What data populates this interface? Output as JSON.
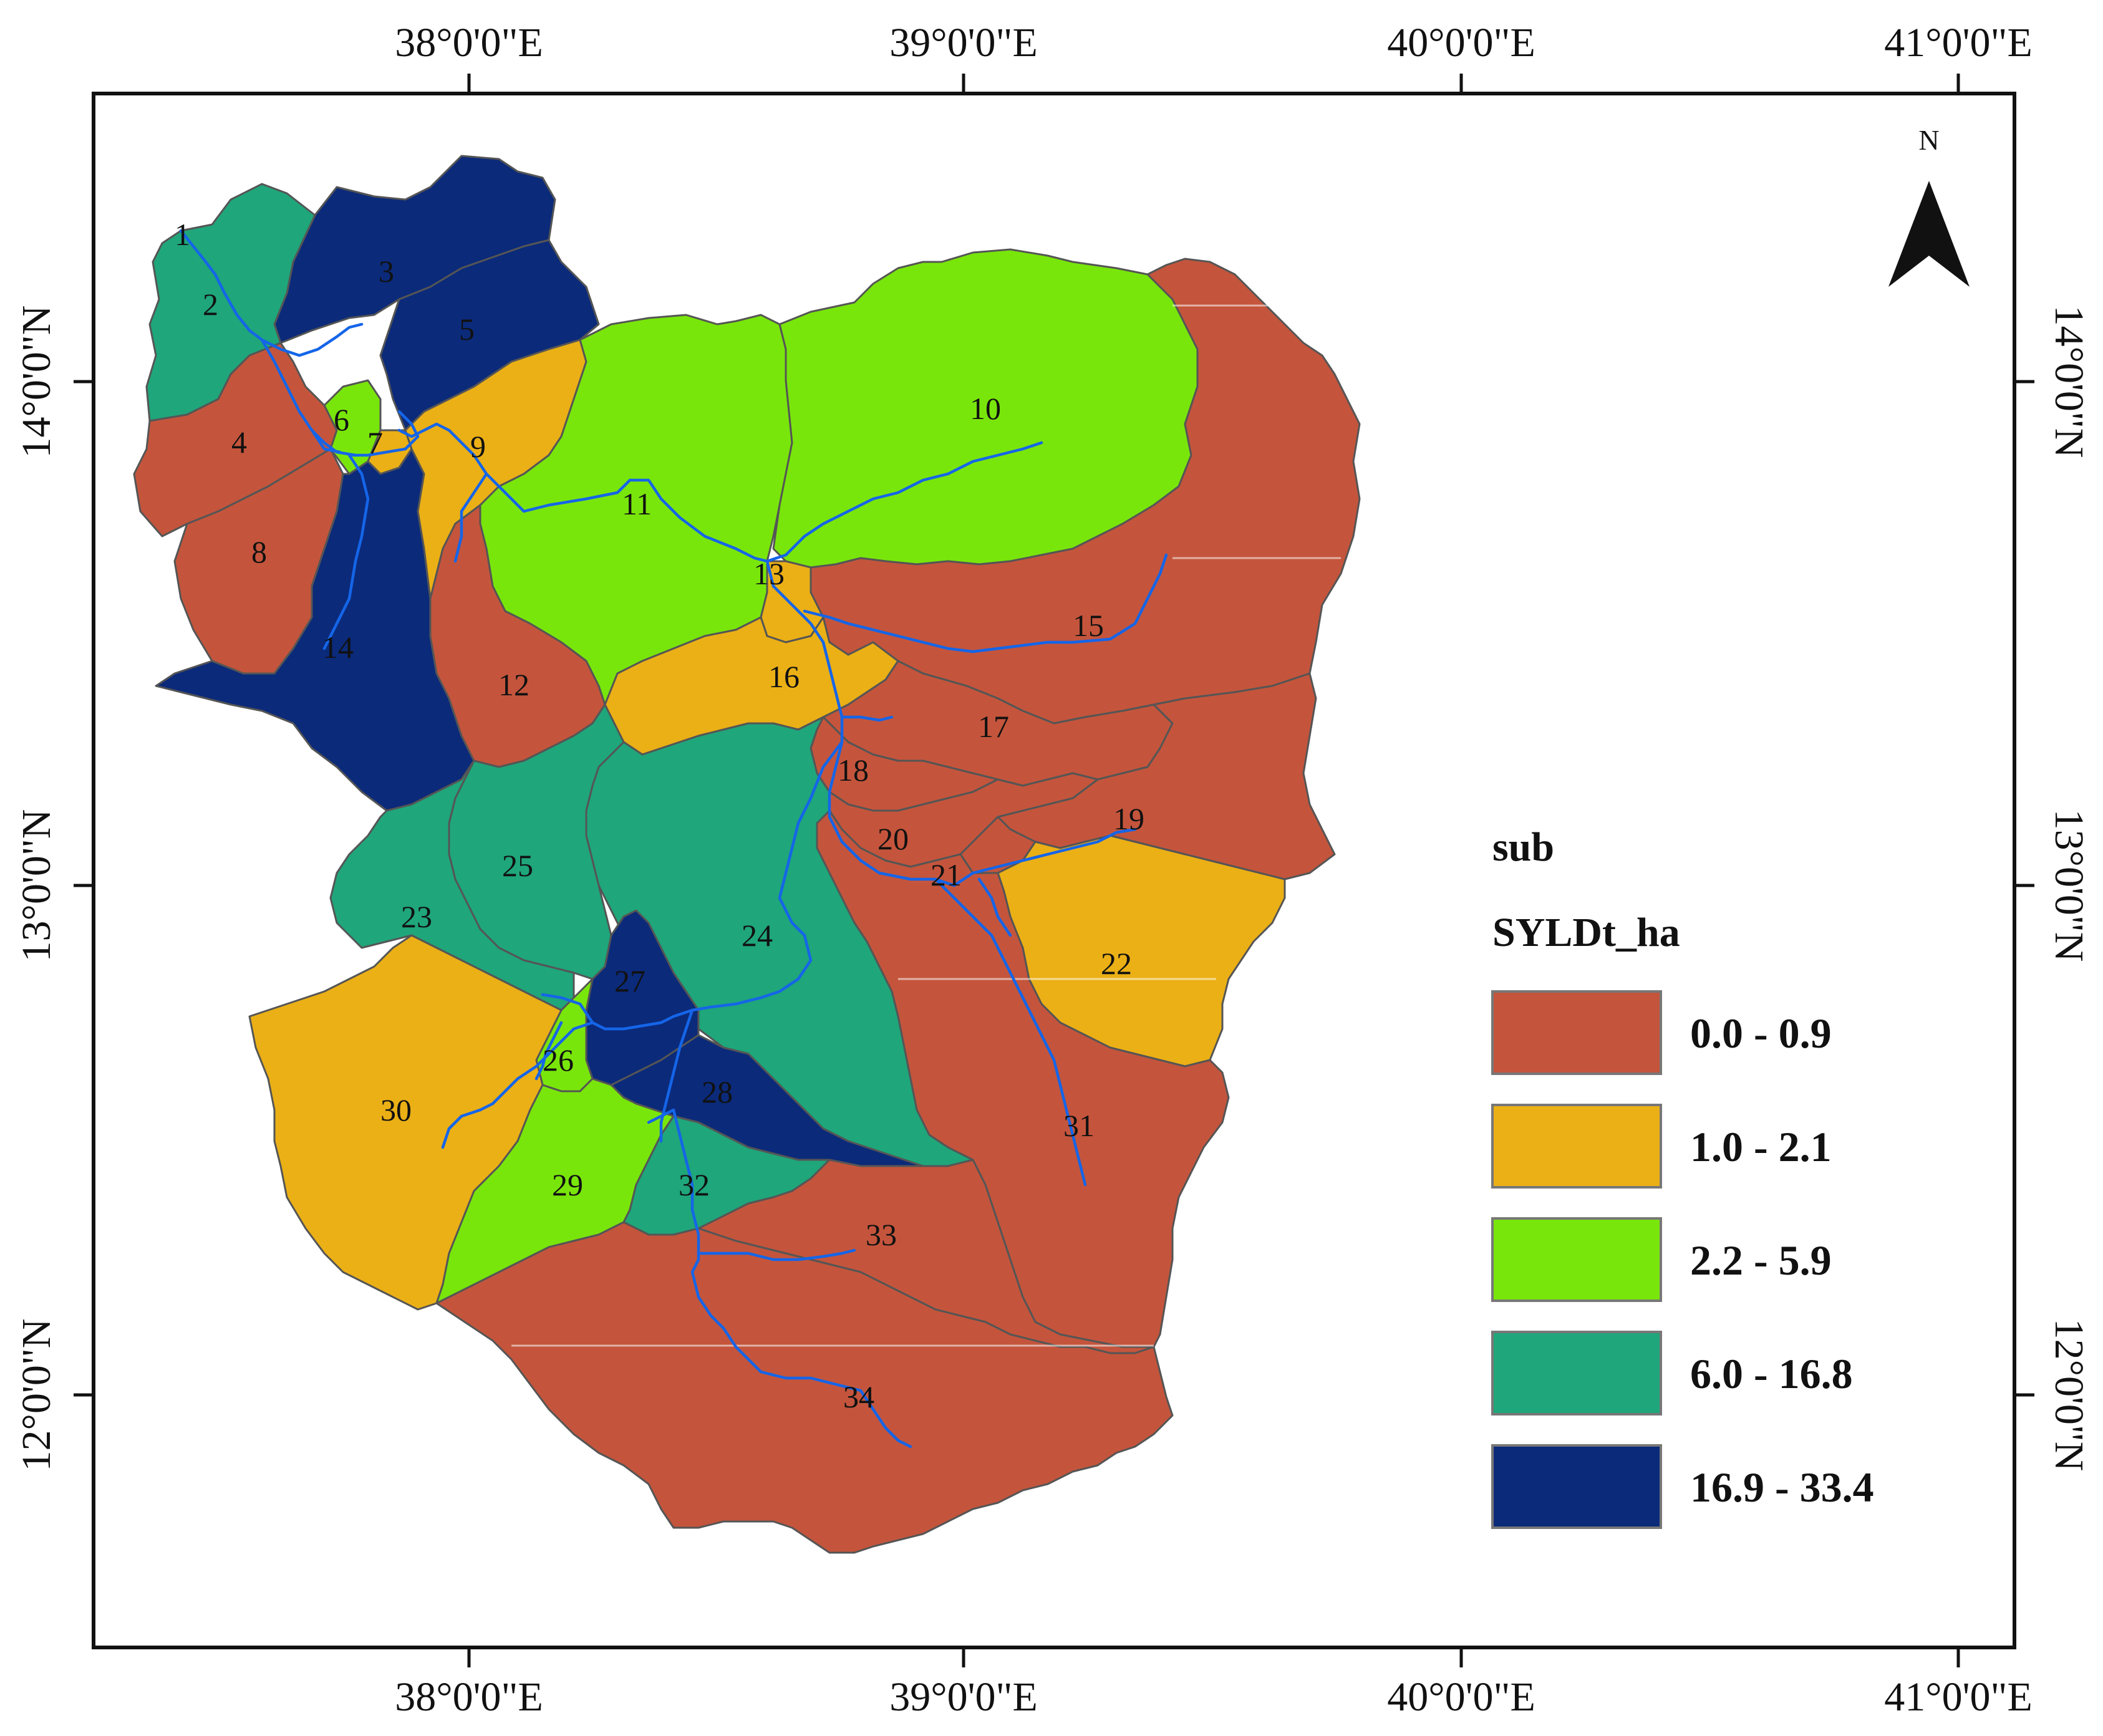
{
  "axes": {
    "lon_labels": [
      "38°0'0\"E",
      "39°0'0\"E",
      "40°0'0\"E",
      "41°0'0\"E"
    ],
    "lat_labels": [
      "14°0'0\"N",
      "13°0'0\"N",
      "12°0'0\"N"
    ]
  },
  "north_arrow": {
    "label": "N",
    "icon": "north-arrow-icon"
  },
  "legend": {
    "title_line1": "sub",
    "title_line2": "SYLDt_ha",
    "classes": [
      {
        "label": "0.0 - 0.9",
        "color": "#c4553c"
      },
      {
        "label": "1.0 - 2.1",
        "color": "#ebb016"
      },
      {
        "label": "2.2 - 5.9",
        "color": "#79e60b"
      },
      {
        "label": "6.0 - 16.8",
        "color": "#1fa67a"
      },
      {
        "label": "16.9 - 33.4",
        "color": "#0b2a7a"
      }
    ]
  },
  "subbasins": [
    {
      "id": "1",
      "class": 3
    },
    {
      "id": "2",
      "class": 3
    },
    {
      "id": "3",
      "class": 4
    },
    {
      "id": "4",
      "class": 0
    },
    {
      "id": "5",
      "class": 4
    },
    {
      "id": "6",
      "class": 2
    },
    {
      "id": "7",
      "class": 1
    },
    {
      "id": "8",
      "class": 0
    },
    {
      "id": "9",
      "class": 1
    },
    {
      "id": "10",
      "class": 2
    },
    {
      "id": "11",
      "class": 2
    },
    {
      "id": "12",
      "class": 0
    },
    {
      "id": "13",
      "class": 1
    },
    {
      "id": "14",
      "class": 4
    },
    {
      "id": "15",
      "class": 0
    },
    {
      "id": "16",
      "class": 1
    },
    {
      "id": "17",
      "class": 0
    },
    {
      "id": "18",
      "class": 0
    },
    {
      "id": "19",
      "class": 0
    },
    {
      "id": "20",
      "class": 0
    },
    {
      "id": "21",
      "class": 0
    },
    {
      "id": "22",
      "class": 1
    },
    {
      "id": "23",
      "class": 3
    },
    {
      "id": "24",
      "class": 3
    },
    {
      "id": "25",
      "class": 3
    },
    {
      "id": "26",
      "class": 2
    },
    {
      "id": "27",
      "class": 4
    },
    {
      "id": "28",
      "class": 4
    },
    {
      "id": "29",
      "class": 2
    },
    {
      "id": "30",
      "class": 1
    },
    {
      "id": "31",
      "class": 0
    },
    {
      "id": "32",
      "class": 3
    },
    {
      "id": "33",
      "class": 0
    },
    {
      "id": "34",
      "class": 0
    }
  ]
}
